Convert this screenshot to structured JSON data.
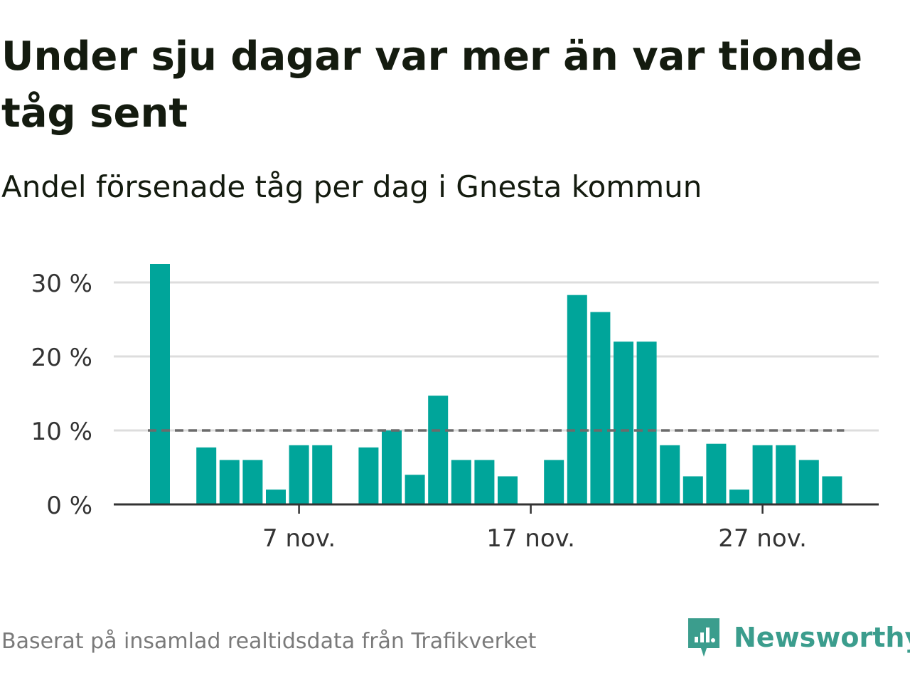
{
  "header": {
    "title": "Under sju dagar var mer än var tionde tåg sent",
    "subtitle": "Andel försenade tåg per dag i Gnesta kommun"
  },
  "footer": {
    "source": "Baserat på insamlad realtidsdata från Trafikverket",
    "brand": "Newsworthy",
    "brand_icon": "newsworthy-logo-icon",
    "brand_color": "#3b9d8d"
  },
  "colors": {
    "bar": "#00a59a",
    "grid": "#dddddd",
    "axis": "#333333",
    "reference_line": "#6b6b6b",
    "text": "#141b0f"
  },
  "chart_data": {
    "type": "bar",
    "title": "Under sju dagar var mer än var tionde tåg sent",
    "subtitle": "Andel försenade tåg per dag i Gnesta kommun",
    "x_unit": "day of November",
    "categories": [
      1,
      2,
      3,
      4,
      5,
      6,
      7,
      8,
      9,
      10,
      11,
      12,
      13,
      14,
      15,
      16,
      17,
      18,
      19,
      20,
      21,
      22,
      23,
      24,
      25,
      26,
      27,
      28,
      29,
      30
    ],
    "values": [
      32.5,
      null,
      7.7,
      6.0,
      6.0,
      2.0,
      8.0,
      8.0,
      null,
      7.7,
      10.0,
      4.0,
      14.7,
      6.0,
      6.0,
      3.8,
      null,
      6.0,
      28.3,
      26.0,
      22.0,
      22.0,
      8.0,
      3.8,
      8.2,
      2.0,
      8.0,
      8.0,
      6.0,
      3.8
    ],
    "x_ticks": [
      7,
      17,
      27
    ],
    "x_tick_labels": [
      "7 nov.",
      "17 nov.",
      "27 nov."
    ],
    "y_ticks": [
      0,
      10,
      20,
      30
    ],
    "y_tick_labels": [
      "0 %",
      "10 %",
      "20 %",
      "30 %"
    ],
    "ylim": [
      0,
      32.5
    ],
    "reference_line": 10,
    "grid": true,
    "legend": "none"
  }
}
